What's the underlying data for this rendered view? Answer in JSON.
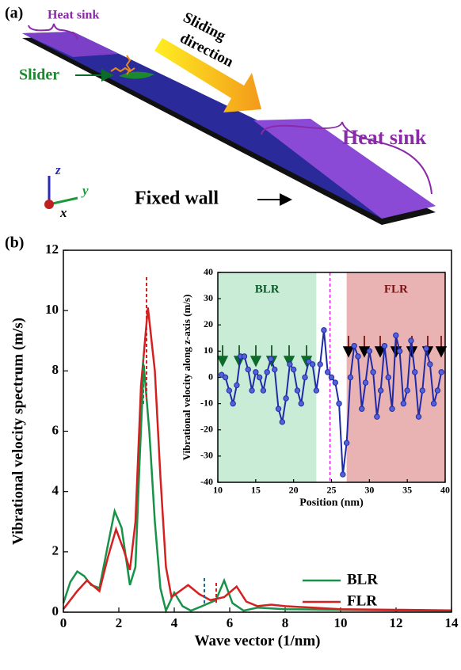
{
  "panel_a": {
    "label": "(a)",
    "heat_sink_left": "Heat sink",
    "heat_sink_right": "Heat sink",
    "slider": "Slider",
    "sliding_direction": [
      "Sliding",
      "direction"
    ],
    "fixed_wall": "Fixed wall",
    "axes": [
      "z",
      "y",
      "x"
    ]
  },
  "panel_b_label": "(b)",
  "chart_data": [
    {
      "type": "line",
      "xlabel": "Wave vector (1/nm)",
      "ylabel": "Vibrational velocity spectrum (m/s)",
      "xlim": [
        0,
        14
      ],
      "xticks": [
        0,
        2,
        4,
        6,
        8,
        10,
        12,
        14
      ],
      "ylim": [
        0,
        12
      ],
      "yticks": [
        0,
        2,
        4,
        6,
        8,
        10,
        12
      ],
      "legend": "lower right",
      "series": [
        {
          "name": "BLR",
          "color": "#179248",
          "x": [
            0,
            0.25,
            0.5,
            0.75,
            1.0,
            1.3,
            1.6,
            1.85,
            2.1,
            2.4,
            2.6,
            2.75,
            2.9,
            3.1,
            3.3,
            3.5,
            3.7,
            4.0,
            4.3,
            4.6,
            5.0,
            5.5,
            5.8,
            6.1,
            6.5,
            7.0,
            8.0,
            10.0,
            12.0,
            14.0
          ],
          "values": [
            0.3,
            1.0,
            1.35,
            1.2,
            0.9,
            0.8,
            2.2,
            3.35,
            2.8,
            0.9,
            1.5,
            5.0,
            8.2,
            6.0,
            3.0,
            0.8,
            0.05,
            0.65,
            0.2,
            0.05,
            0.2,
            0.4,
            1.05,
            0.3,
            0.05,
            0.15,
            0.1,
            0.08,
            0.06,
            0.05
          ]
        },
        {
          "name": "FLR",
          "color": "#d42020",
          "x": [
            0,
            0.5,
            0.85,
            1.3,
            1.6,
            1.9,
            2.2,
            2.4,
            2.6,
            2.8,
            3.05,
            3.3,
            3.5,
            3.7,
            3.9,
            4.2,
            4.5,
            4.9,
            5.3,
            5.8,
            6.25,
            6.6,
            7.0,
            7.5,
            8.0,
            9.0,
            10.0,
            12.0,
            14.0
          ],
          "values": [
            0.1,
            0.7,
            1.05,
            0.7,
            1.8,
            2.75,
            2.0,
            1.4,
            3.0,
            7.5,
            10.1,
            8.0,
            4.5,
            1.5,
            0.5,
            0.7,
            0.9,
            0.6,
            0.4,
            0.5,
            0.85,
            0.35,
            0.2,
            0.25,
            0.2,
            0.15,
            0.1,
            0.08,
            0.06
          ]
        }
      ]
    },
    {
      "type": "line",
      "xlabel": "Position (nm)",
      "ylabel": "Vibrational velocity along z-axis (m/s)",
      "xlim": [
        10,
        40
      ],
      "xticks": [
        10,
        15,
        20,
        25,
        30,
        35,
        40
      ],
      "ylim": [
        -40,
        40
      ],
      "yticks": [
        -40,
        -30,
        -20,
        -10,
        0,
        10,
        20,
        30,
        40
      ],
      "regions": [
        {
          "label": "BLR",
          "xlim": [
            10,
            23
          ],
          "color": "#c9ecd7"
        },
        {
          "label": "FLR",
          "xlim": [
            27,
            40
          ],
          "color": "#e9b3b3"
        }
      ],
      "divider_x": 24.8,
      "series": [
        {
          "color": "#1f2aa5",
          "x": [
            10.5,
            11,
            11.5,
            12,
            12.5,
            13,
            13.5,
            14,
            14.5,
            15,
            15.5,
            16,
            16.5,
            17,
            17.5,
            18,
            18.5,
            19,
            19.5,
            20,
            20.5,
            21,
            21.5,
            22,
            22.5,
            23,
            23.5,
            24,
            24.5,
            25,
            25.5,
            26,
            26.5,
            27,
            27.5,
            28,
            28.5,
            29,
            29.5,
            30,
            30.5,
            31,
            31.5,
            32,
            32.5,
            33,
            33.5,
            34,
            34.5,
            35,
            35.5,
            36,
            36.5,
            37,
            37.5,
            38,
            38.5,
            39,
            39.5
          ],
          "values": [
            1,
            0,
            -5,
            -10,
            -3,
            8,
            8,
            3,
            -5,
            2,
            0,
            -5,
            2,
            7,
            3,
            -12,
            -17,
            -8,
            5,
            3,
            -5,
            -10,
            0,
            6,
            5,
            -5,
            5,
            18,
            2,
            0,
            -2,
            -10,
            -37,
            -25,
            0,
            12,
            8,
            -12,
            -2,
            10,
            2,
            -15,
            -5,
            12,
            0,
            -12,
            16,
            10,
            -10,
            -5,
            14,
            2,
            -15,
            -5,
            11,
            5,
            -10,
            -5,
            2
          ]
        }
      ]
    }
  ]
}
